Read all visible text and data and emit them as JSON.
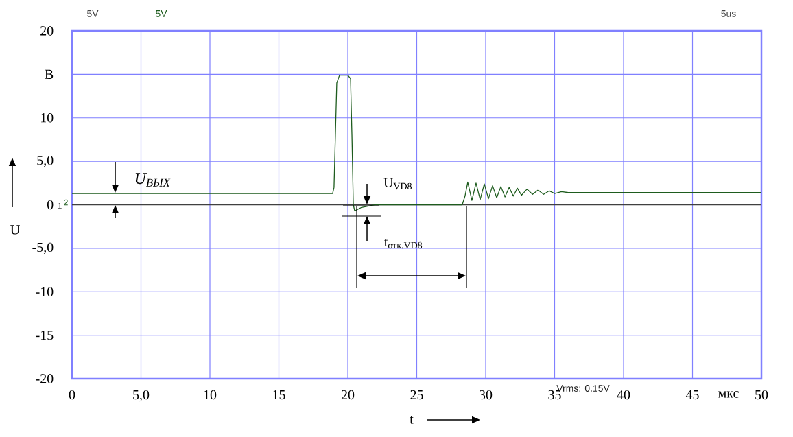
{
  "chart_data": {
    "type": "line",
    "xlabel": "t",
    "ylabel": "U",
    "xlim": [
      0,
      50
    ],
    "ylim": [
      -20,
      20
    ],
    "xticks": [
      0,
      {
        "value": 5,
        "label": "5,0"
      },
      10,
      15,
      20,
      25,
      30,
      35,
      40,
      45,
      50
    ],
    "yticks": [
      -20,
      -15,
      -10,
      {
        "value": -5,
        "label": "-5,0"
      },
      0,
      {
        "value": 5,
        "label": "5,0"
      },
      10,
      {
        "value": 15,
        "label": "В"
      },
      20
    ],
    "grid": true,
    "marker": "none",
    "line_style": "solid",
    "annotations": [
      "5V",
      "5V",
      "5us",
      "Vrms: 0.15V",
      "мкс",
      "U$_{ВЫХ}$",
      "U$_{VD8}$",
      "t$_{отк.VD8}$",
      "1",
      "2"
    ],
    "series": [
      {
        "color": "#404040",
        "x": [
          0,
          50
        ],
        "values": [
          0,
          0
        ]
      },
      {
        "color": "#1e5c1e",
        "x": [
          0,
          18.9,
          19.0,
          19.1,
          19.2,
          19.4,
          20.0,
          20.2,
          20.3,
          20.4,
          20.5,
          21,
          22,
          28.3,
          28.5,
          28.7,
          29.0,
          29.3,
          29.6,
          29.9,
          30.2,
          30.5,
          30.8,
          31.1,
          31.4,
          31.7,
          32.0,
          32.3,
          32.6,
          33.0,
          33.4,
          33.8,
          34.2,
          34.6,
          35.0,
          35.5,
          36,
          37,
          38,
          50
        ],
        "values": [
          1.3,
          1.3,
          2,
          8,
          14,
          14.9,
          14.9,
          14.5,
          8,
          0,
          -0.7,
          -0.3,
          0,
          0,
          1,
          2.6,
          0.5,
          2.5,
          0.6,
          2.4,
          0.7,
          2.2,
          0.8,
          2.1,
          0.9,
          2.0,
          1.0,
          1.9,
          1.1,
          1.8,
          1.2,
          1.7,
          1.2,
          1.6,
          1.3,
          1.5,
          1.4,
          1.4,
          1.4,
          1.4
        ]
      }
    ]
  }
}
